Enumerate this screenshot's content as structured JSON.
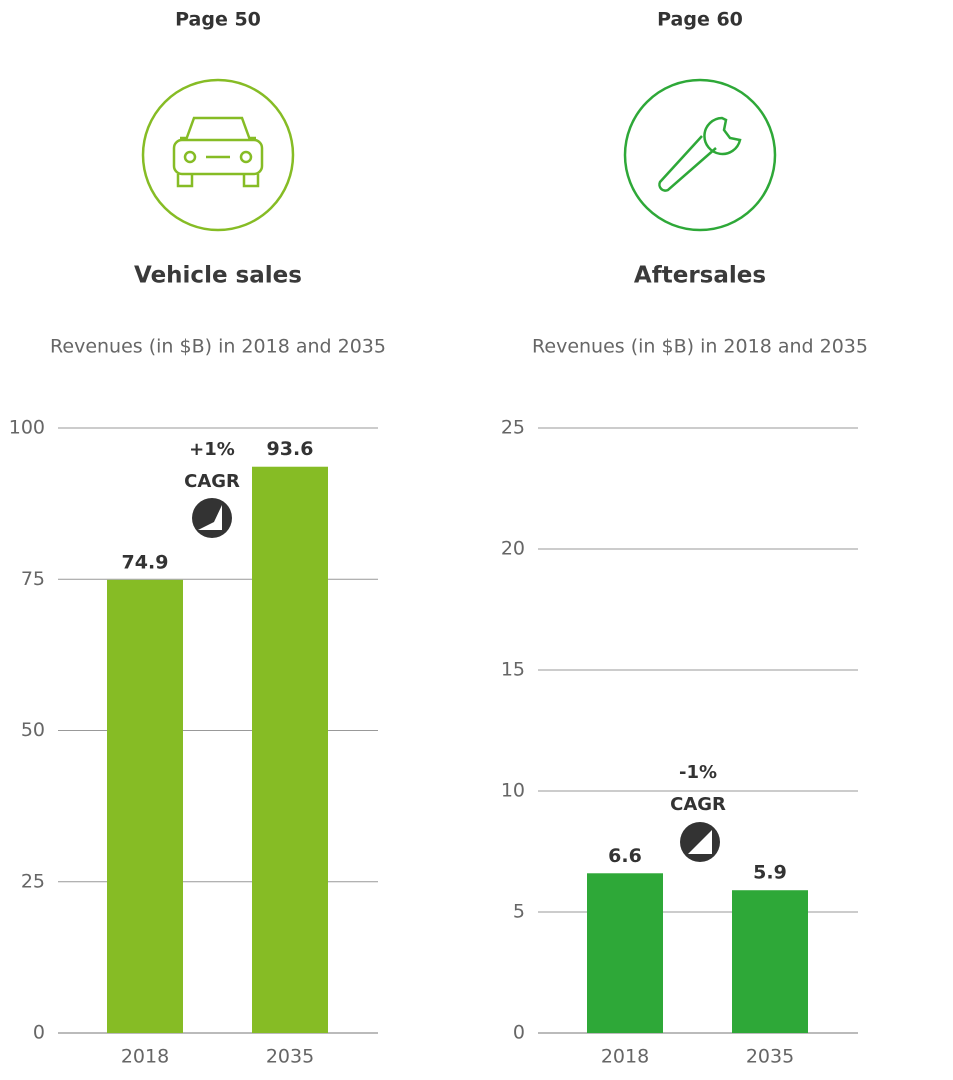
{
  "chart_data": [
    {
      "type": "bar",
      "page": "Page 50",
      "title": "Vehicle sales",
      "subtitle": "Revenues (in $B) in 2018 and 2035",
      "categories": [
        "2018",
        "2035"
      ],
      "values": [
        74.9,
        93.6
      ],
      "color": "#86bc25",
      "ylim": [
        0,
        100
      ],
      "yticks": [
        0,
        25,
        50,
        75,
        100
      ],
      "grid": true,
      "annotation": {
        "change": "+1%",
        "label": "CAGR"
      }
    },
    {
      "type": "bar",
      "page": "Page 60",
      "title": "Aftersales",
      "subtitle": "Revenues (in $B) in 2018 and 2035",
      "categories": [
        "2018",
        "2035"
      ],
      "values": [
        6.6,
        5.9
      ],
      "color": "#2ea838",
      "ylim": [
        0,
        25
      ],
      "yticks": [
        0,
        5,
        10,
        15,
        20,
        25
      ],
      "grid": true,
      "annotation": {
        "change": "-1%",
        "label": "CAGR"
      }
    }
  ]
}
